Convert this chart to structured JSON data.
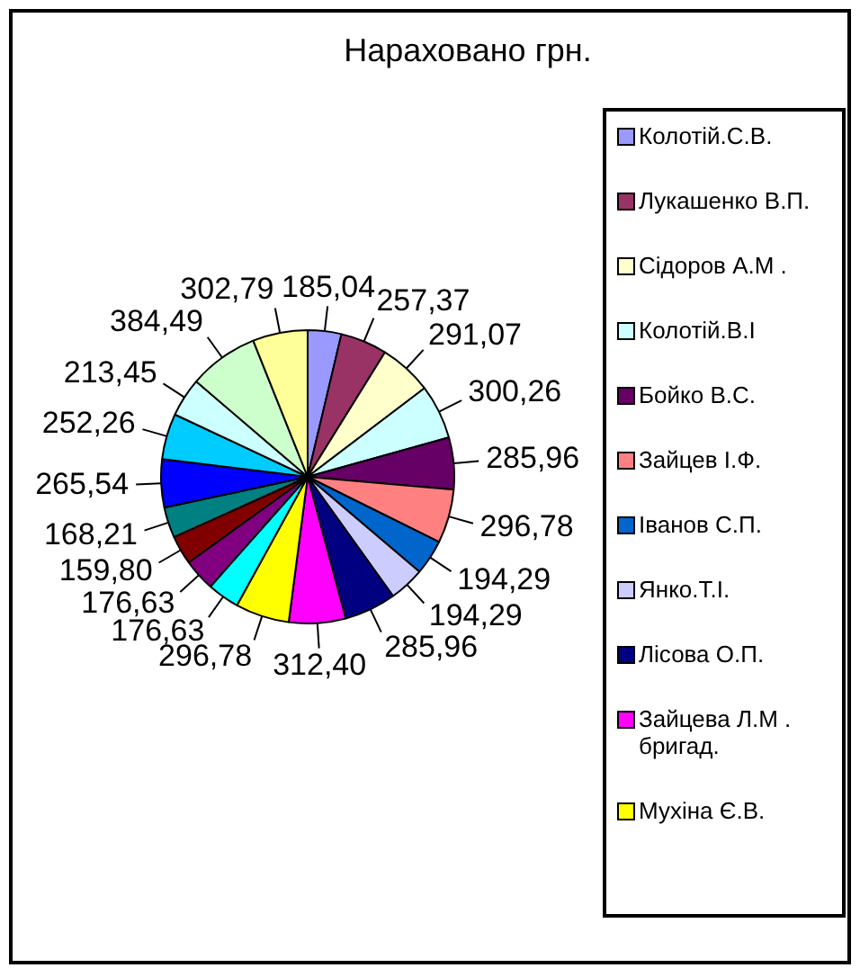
{
  "chart_data": {
    "type": "pie",
    "title": "Нараховано грн.",
    "categories": [
      "Колотій.С.В.",
      "Лукашенко В.П.",
      "Сідоров А.М .",
      "Колотій.В.І",
      "Бойко В.С.",
      "Зайцев І.Ф.",
      "Іванов С.П.",
      "Янко.Т.І.",
      "Лісова О.П.",
      "Зайцева Л.М . бригад.",
      "Мухіна Є.В.",
      null,
      null,
      null,
      null,
      null,
      null,
      null,
      null,
      null
    ],
    "values": [
      185.04,
      257.37,
      291.07,
      300.26,
      285.96,
      296.78,
      194.29,
      194.29,
      285.96,
      312.4,
      296.78,
      176.63,
      176.63,
      159.8,
      168.21,
      265.54,
      252.26,
      213.45,
      384.49,
      302.79
    ],
    "colors": [
      "#9999ff",
      "#993366",
      "#ffffcc",
      "#ccffff",
      "#660066",
      "#ff8080",
      "#0066cc",
      "#ccccff",
      "#000080",
      "#ff00ff",
      "#ffff00",
      "#00ffff",
      "#800080",
      "#800000",
      "#008080",
      "#0000ff",
      "#00ccff",
      "#ccffff",
      "#ccffcc",
      "#ffff99"
    ],
    "value_labels": [
      "185,04",
      "257,37",
      "291,07",
      "300,26",
      "285,96",
      "296,78",
      "194,29",
      "194,29",
      "285,96",
      "312,40",
      "296,78",
      "176,63",
      "176,63",
      "159,80",
      "168,21",
      "265,54",
      "252,26",
      "213,45",
      "384,49",
      "302,79"
    ],
    "legend": "right"
  }
}
